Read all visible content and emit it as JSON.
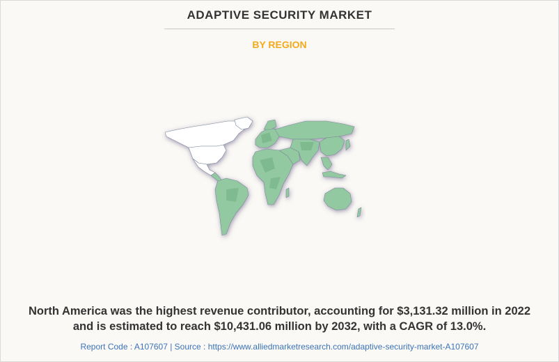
{
  "header": {
    "title": "ADAPTIVE SECURITY MARKET",
    "subtitle": "BY REGION"
  },
  "map": {
    "highlighted_region": "North America",
    "colors": {
      "highlight": "#ffffff",
      "land": "#93c9a0",
      "land_dark": "#6fae80",
      "border": "#7a8a9a",
      "shadow": "#5a4a7a"
    }
  },
  "summary": {
    "line1": "North America was the highest revenue contributor, accounting for $3,131.32 million in 2022",
    "line2": "and is estimated to reach $10,431.06 million by 2032, with a CAGR of 13.0%."
  },
  "footer": {
    "text": "Report Code : A107607  |  Source : https://www.alliedmarketresearch.com/adaptive-security-market-A107607"
  }
}
